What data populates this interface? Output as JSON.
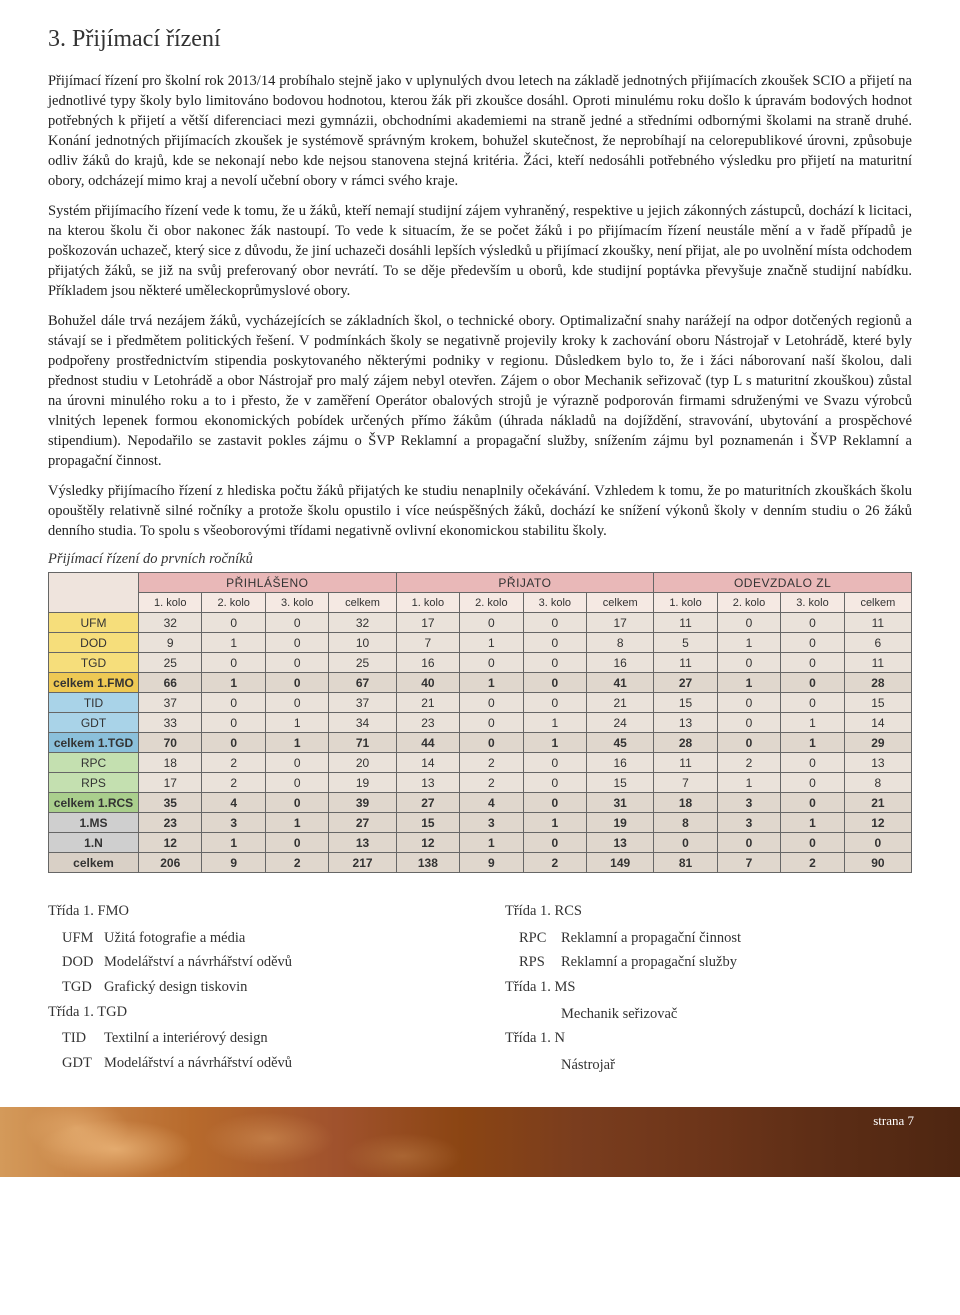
{
  "heading": "3. Přijímací řízení",
  "paragraphs": [
    "Přijímací řízení pro školní rok 2013/14 probíhalo stejně jako v uplynulých dvou letech na základě jednotných přijímacích zkoušek SCIO a přijetí na jednotlivé typy školy bylo limitováno bodovou hodnotou, kterou žák při zkoušce dosáhl. Oproti minulému roku došlo k úpravám bodových hodnot potřebných k přijetí a větší diferenciaci mezi gymnázii, obchodními akademiemi na straně jedné a středními odbornými školami na straně druhé. Konání jednotných přijímacích zkoušek je systémově správným krokem, bohužel skutečnost, že neprobíhají na celorepublikové úrovni, způsobuje odliv žáků do krajů, kde se nekonají nebo kde nejsou stanovena stejná kritéria. Žáci, kteří nedosáhli potřebného výsledku pro přijetí na maturitní obory, odcházejí mimo kraj a nevolí učební obory v rámci svého kraje.",
    "Systém přijímacího řízení vede k tomu, že u žáků, kteří nemají studijní zájem vyhraněný, respektive u jejich zákonných zástupců, dochází k licitaci, na kterou školu či obor nakonec žák nastoupí. To vede k situacím, že se počet žáků i po přijímacím řízení neustále mění a v řadě případů je poškozován uchazeč, který sice z důvodu, že jiní uchazeči dosáhli lepších výsledků u přijímací zkoušky, není přijat, ale po uvolnění místa odchodem přijatých žáků, se již na svůj preferovaný obor nevrátí. To se děje především u oborů, kde studijní poptávka převyšuje značně studijní nabídku. Příkladem jsou některé uměleckoprůmyslové obory.",
    "Bohužel dále trvá nezájem žáků, vycházejících se základních škol, o technické obory. Optimalizační snahy narážejí na odpor dotčených regionů a stávají se i předmětem politických řešení. V podmínkách školy se negativně projevily kroky k zachování oboru Nástrojař v Letohrádě, které byly podpořeny prostřednictvím stipendia poskytovaného některými podniky v regionu. Důsledkem bylo to, že i žáci náborovaní naší školou, dali přednost studiu v Letohrádě a obor Nástrojař pro malý zájem nebyl otevřen. Zájem o obor Mechanik seřizovač (typ L s maturitní zkouškou) zůstal na úrovni minulého roku a to i přesto, že v zaměření Operátor obalových strojů je výrazně podporován firmami sdruženými ve Svazu výrobců vlnitých lepenek formou ekonomických pobídek určených přímo žákům (úhrada nákladů na dojíždění, stravování, ubytování a prospěchové stipendium). Nepodařilo se zastavit pokles zájmu o ŠVP Reklamní a propagační služby, snížením zájmu byl poznamenán i ŠVP Reklamní a propagační činnost.",
    "Výsledky přijímacího řízení z hlediska počtu žáků přijatých ke studiu nenaplnily očekávání. Vzhledem k tomu, že po maturitních zkouškách školu opouštěly relativně silné ročníky a protože školu opustilo i více neúspěšných žáků, dochází ke snížení výkonů školy v denním studiu o 26 žáků denního studia. To spolu s všeoborovými třídami negativně ovlivní ekonomickou stabilitu školy."
  ],
  "table_caption": "Přijímací řízení do prvních ročníků",
  "table": {
    "groups": [
      "PŘIHLÁŠENO",
      "PŘIJATO",
      "ODEVZDALO ZL"
    ],
    "subcols": [
      "1. kolo",
      "2. kolo",
      "3. kolo",
      "celkem"
    ],
    "colors": {
      "corner": "#efe4dd",
      "group_bg": "#e9b8b8",
      "sub_bg": "#f5e9e3",
      "yellow": "#f6de7b",
      "yellow_sum": "#eec954",
      "blue": "#a9d3e8",
      "blue_sum": "#8bc0db",
      "green": "#c4e0b0",
      "green_sum": "#aacf8d",
      "grey": "#cfcfcf",
      "total": "#d9d0c6",
      "cell": "#eae2da",
      "cell_alt": "#e0d7cd",
      "border": "#666666"
    },
    "rows": [
      {
        "label": "UFM",
        "style": "yellow",
        "v": [
          32,
          0,
          0,
          32,
          17,
          0,
          0,
          17,
          11,
          0,
          0,
          11
        ]
      },
      {
        "label": "DOD",
        "style": "yellow",
        "v": [
          9,
          1,
          0,
          10,
          7,
          1,
          0,
          8,
          5,
          1,
          0,
          6
        ]
      },
      {
        "label": "TGD",
        "style": "yellow",
        "v": [
          25,
          0,
          0,
          25,
          16,
          0,
          0,
          16,
          11,
          0,
          0,
          11
        ]
      },
      {
        "label": "celkem 1.FMO",
        "style": "yellow_sum",
        "bold": true,
        "v": [
          66,
          1,
          0,
          67,
          40,
          1,
          0,
          41,
          27,
          1,
          0,
          28
        ]
      },
      {
        "label": "TID",
        "style": "blue",
        "v": [
          37,
          0,
          0,
          37,
          21,
          0,
          0,
          21,
          15,
          0,
          0,
          15
        ]
      },
      {
        "label": "GDT",
        "style": "blue",
        "v": [
          33,
          0,
          1,
          34,
          23,
          0,
          1,
          24,
          13,
          0,
          1,
          14
        ]
      },
      {
        "label": "celkem 1.TGD",
        "style": "blue_sum",
        "bold": true,
        "v": [
          70,
          0,
          1,
          71,
          44,
          0,
          1,
          45,
          28,
          0,
          1,
          29
        ]
      },
      {
        "label": "RPC",
        "style": "green",
        "v": [
          18,
          2,
          0,
          20,
          14,
          2,
          0,
          16,
          11,
          2,
          0,
          13
        ]
      },
      {
        "label": "RPS",
        "style": "green",
        "v": [
          17,
          2,
          0,
          19,
          13,
          2,
          0,
          15,
          7,
          1,
          0,
          8
        ]
      },
      {
        "label": "celkem 1.RCS",
        "style": "green_sum",
        "bold": true,
        "v": [
          35,
          4,
          0,
          39,
          27,
          4,
          0,
          31,
          18,
          3,
          0,
          21
        ]
      },
      {
        "label": "1.MS",
        "style": "grey",
        "bold": true,
        "v": [
          23,
          3,
          1,
          27,
          15,
          3,
          1,
          19,
          8,
          3,
          1,
          12
        ]
      },
      {
        "label": "1.N",
        "style": "grey",
        "bold": true,
        "v": [
          12,
          1,
          0,
          13,
          12,
          1,
          0,
          13,
          0,
          0,
          0,
          0
        ]
      },
      {
        "label": "celkem",
        "style": "total",
        "bold": true,
        "v": [
          206,
          9,
          2,
          217,
          138,
          9,
          2,
          149,
          81,
          7,
          2,
          90
        ]
      }
    ]
  },
  "legend": {
    "left": [
      {
        "type": "head",
        "text": "Třída 1. FMO"
      },
      {
        "type": "item",
        "code": "UFM",
        "text": "Užitá fotografie a média"
      },
      {
        "type": "item",
        "code": "DOD",
        "text": "Modelářství a návrhářství oděvů"
      },
      {
        "type": "item",
        "code": "TGD",
        "text": "Grafický design tiskovin"
      },
      {
        "type": "head",
        "text": "Třída 1. TGD"
      },
      {
        "type": "item",
        "code": "TID",
        "text": "Textilní a interiérový design"
      },
      {
        "type": "item",
        "code": "GDT",
        "text": "Modelářství a návrhářství oděvů"
      }
    ],
    "right": [
      {
        "type": "head",
        "text": "Třída 1. RCS"
      },
      {
        "type": "item",
        "code": "RPC",
        "text": "Reklamní a propagační činnost"
      },
      {
        "type": "item",
        "code": "RPS",
        "text": "Reklamní a propagační služby"
      },
      {
        "type": "head",
        "text": "Třída 1. MS"
      },
      {
        "type": "item",
        "code": "",
        "text": "Mechanik seřizovač"
      },
      {
        "type": "head",
        "text": "Třída 1. N"
      },
      {
        "type": "item",
        "code": "",
        "text": "Nástrojař"
      }
    ]
  },
  "page_number": "strana 7"
}
